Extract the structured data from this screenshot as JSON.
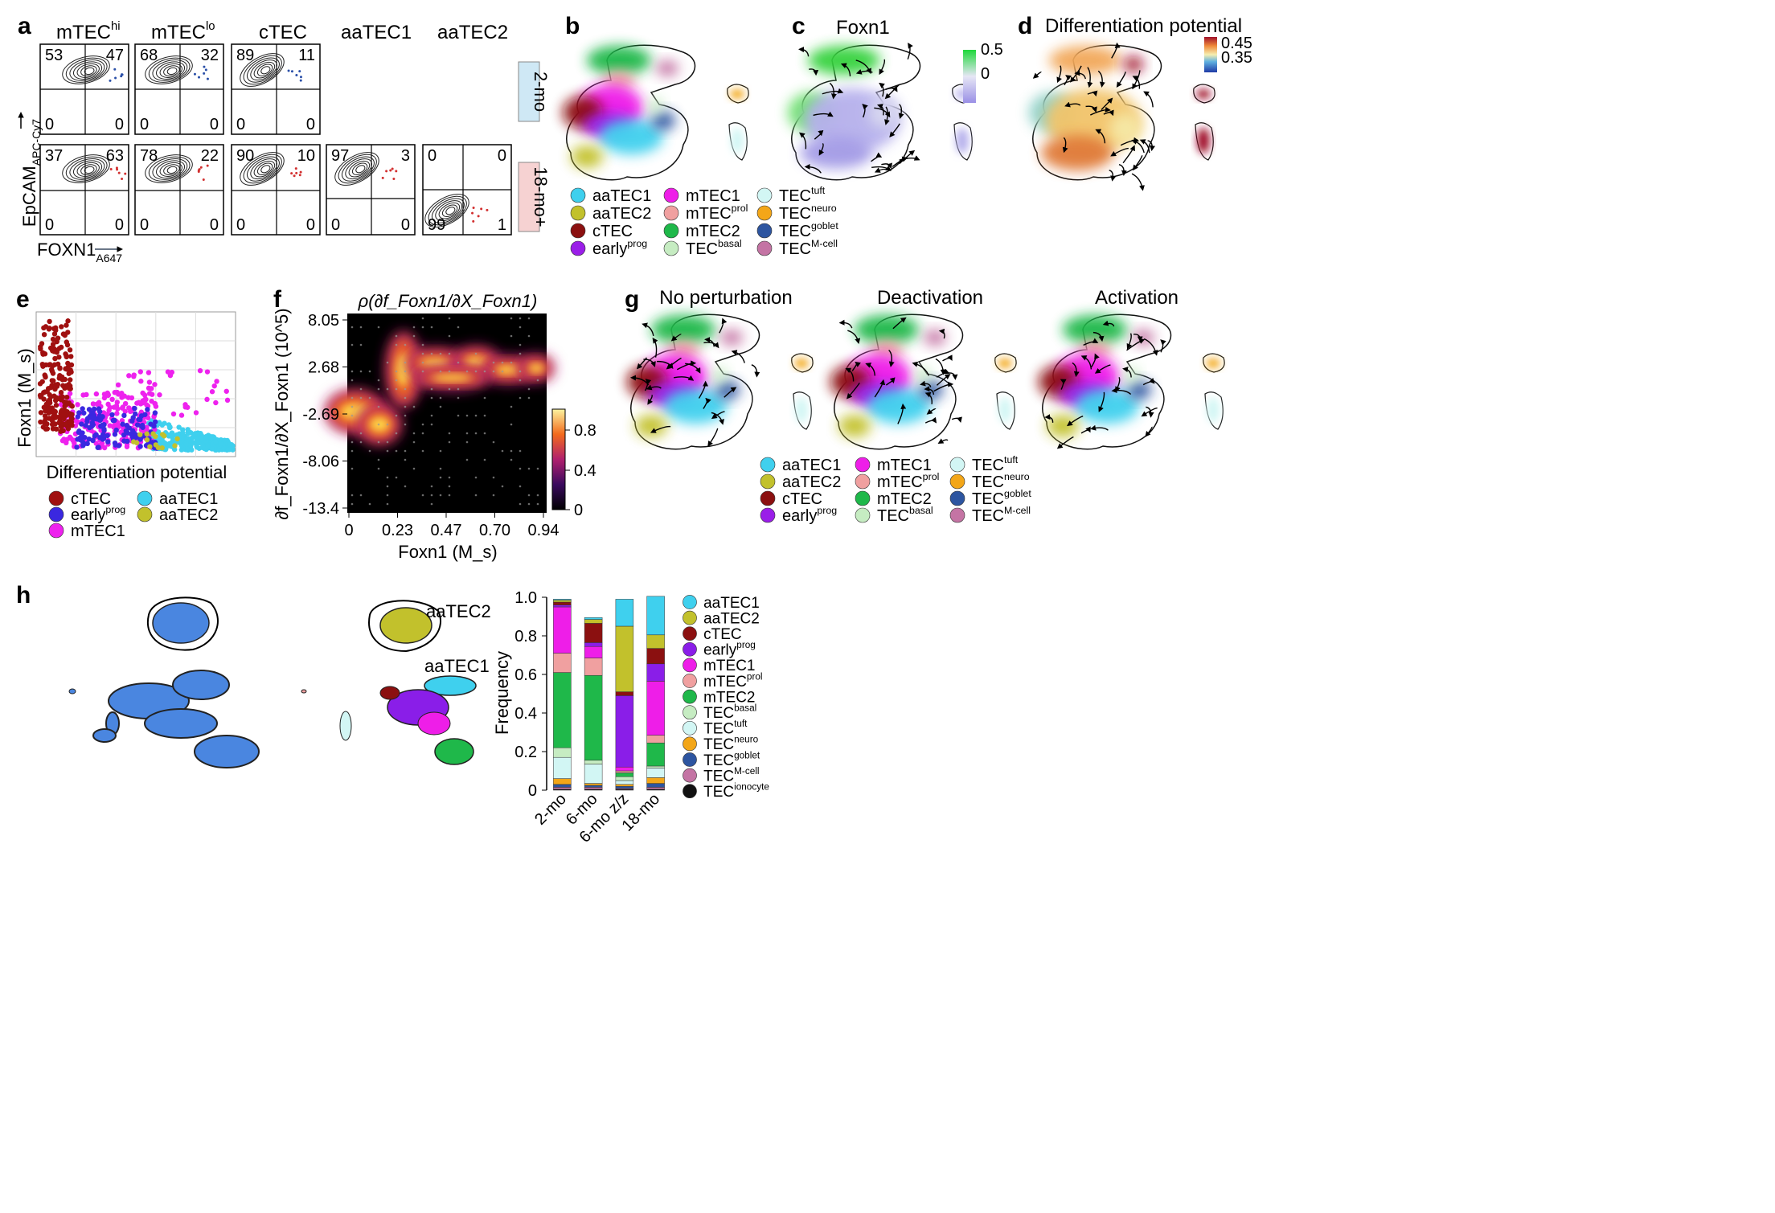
{
  "panels": {
    "a": {
      "label": "a",
      "columns": [
        "mTEC",
        "mTEC",
        "cTEC",
        "aaTEC1",
        "aaTEC2"
      ],
      "column_sups": [
        "hi",
        "lo",
        "",
        "",
        ""
      ],
      "rows": [
        {
          "tag": "2-mo",
          "color": "#cfe8f5",
          "quadrants": [
            [
              "53",
              "47",
              "0",
              "0"
            ],
            [
              "68",
              "32",
              "0",
              "0"
            ],
            [
              "89",
              "11",
              "0",
              "0"
            ]
          ]
        },
        {
          "tag": "18-mo+",
          "color": "#f6d2d2",
          "quadrants": [
            [
              "37",
              "63",
              "0",
              "0"
            ],
            [
              "78",
              "22",
              "0",
              "0"
            ],
            [
              "90",
              "10",
              "0",
              "0"
            ],
            [
              "97",
              "3",
              "0",
              "0"
            ],
            [
              "0",
              "0",
              "99",
              "1"
            ]
          ]
        }
      ],
      "y_axis": "EpCAM",
      "y_axis_sub": "APC-Cy7",
      "x_axis": "FOXN1",
      "x_axis_sub": "A647"
    },
    "b": {
      "label": "b"
    },
    "c": {
      "label": "c",
      "title": "Foxn1",
      "colorbar_ticks": [
        "0.5",
        "0"
      ]
    },
    "d": {
      "label": "d",
      "title": "Differentiation potential",
      "colorbar_ticks": [
        "0.45",
        "0.35"
      ]
    },
    "e": {
      "label": "e",
      "ylabel": "Foxn1 (M_s)",
      "xlabel": "Differentiation potential"
    },
    "f": {
      "label": "f",
      "colorbar_ticks": [
        "0.8",
        "0.4",
        "0"
      ]
    },
    "g": {
      "label": "g",
      "titles": [
        "No perturbation",
        "Deactivation",
        "Activation"
      ]
    },
    "h": {
      "label": "h",
      "cluster_labels": [
        "aaTEC2",
        "aaTEC1"
      ]
    }
  },
  "legends": {
    "b": [
      {
        "name": "aaTEC1",
        "sup": "",
        "color": "#3fd0ee"
      },
      {
        "name": "aaTEC2",
        "sup": "",
        "color": "#c2c12c"
      },
      {
        "name": "cTEC",
        "sup": "",
        "color": "#8b1010"
      },
      {
        "name": "early",
        "sup": "prog",
        "color": "#9a1ee8"
      },
      {
        "name": "mTEC1",
        "sup": "",
        "color": "#ee1ee8"
      },
      {
        "name": "mTEC",
        "sup": "prol",
        "color": "#f0a0a0"
      },
      {
        "name": "mTEC2",
        "sup": "",
        "color": "#1fb84a"
      },
      {
        "name": "TEC",
        "sup": "basal",
        "color": "#c6ecc2"
      },
      {
        "name": "TEC",
        "sup": "tuft",
        "color": "#d2f6f4"
      },
      {
        "name": "TEC",
        "sup": "neuro",
        "color": "#f3a618"
      },
      {
        "name": "TEC",
        "sup": "goblet",
        "color": "#2d55a0"
      },
      {
        "name": "TEC",
        "sup": "M-cell",
        "color": "#c474a4"
      }
    ],
    "e": [
      {
        "name": "cTEC",
        "sup": "",
        "color": "#a01010"
      },
      {
        "name": "early",
        "sup": "prog",
        "color": "#3a28e0"
      },
      {
        "name": "mTEC1",
        "sup": "",
        "color": "#ee22ee"
      },
      {
        "name": "aaTEC1",
        "sup": "",
        "color": "#3fd0ee"
      },
      {
        "name": "aaTEC2",
        "sup": "",
        "color": "#c2c12c"
      }
    ],
    "h": [
      {
        "name": "aaTEC1",
        "sup": "",
        "color": "#3fd0ee"
      },
      {
        "name": "aaTEC2",
        "sup": "",
        "color": "#c2c12c"
      },
      {
        "name": "cTEC",
        "sup": "",
        "color": "#8b1010"
      },
      {
        "name": "early",
        "sup": "prog",
        "color": "#8a1ee8"
      },
      {
        "name": "mTEC1",
        "sup": "",
        "color": "#ee1ee8"
      },
      {
        "name": "mTEC",
        "sup": "prol",
        "color": "#f0a0a0"
      },
      {
        "name": "mTEC2",
        "sup": "",
        "color": "#1fb84a"
      },
      {
        "name": "TEC",
        "sup": "basal",
        "color": "#c6ecc2"
      },
      {
        "name": "TEC",
        "sup": "tuft",
        "color": "#d2f6f4"
      },
      {
        "name": "TEC",
        "sup": "neuro",
        "color": "#f3a618"
      },
      {
        "name": "TEC",
        "sup": "goblet",
        "color": "#2d55a0"
      },
      {
        "name": "TEC",
        "sup": "M-cell",
        "color": "#c474a4"
      },
      {
        "name": "TEC",
        "sup": "ionocyte",
        "color": "#111111"
      }
    ]
  },
  "chart_data": [
    {
      "id": "e",
      "type": "scatter",
      "title": "",
      "xlabel": "Differentiation potential",
      "ylabel": "Foxn1 (M_s)",
      "grid": true,
      "note": "Scatter of cells; Foxn1 expression decreases as differentiation potential increases (axis ticks unlabeled)."
    },
    {
      "id": "f",
      "type": "heatmap",
      "title": "ρ(∂f_Foxn1/∂X_Foxn1)",
      "xlabel": "Foxn1 (M_s)",
      "ylabel": "∂f_Foxn1/∂X_Foxn1 (10^5)",
      "x_ticks": [
        "0",
        "0.23",
        "0.47",
        "0.70",
        "0.94"
      ],
      "y_ticks": [
        "8.05",
        "2.68",
        "-2.69",
        "-8.06",
        "-13.4"
      ],
      "colorbar": {
        "min": 0,
        "max": 1,
        "ticks": [
          0,
          0.4,
          0.8
        ]
      }
    },
    {
      "id": "h",
      "type": "bar",
      "stacked": true,
      "title": "",
      "xlabel": "",
      "ylabel": "Frequency",
      "ylim": [
        0,
        1
      ],
      "y_ticks": [
        "0",
        "0.2",
        "0.4",
        "0.6",
        "0.8",
        "1.0"
      ],
      "categories": [
        "2-mo",
        "6-mo",
        "6-mo z/z",
        "18-mo"
      ],
      "series": [
        {
          "name": "TEC ionocyte",
          "color": "#111111",
          "values": [
            0.005,
            0.005,
            0.005,
            0.005
          ]
        },
        {
          "name": "TEC M-cell",
          "color": "#c474a4",
          "values": [
            0.01,
            0.01,
            0.005,
            0.01
          ]
        },
        {
          "name": "TEC goblet",
          "color": "#2d55a0",
          "values": [
            0.015,
            0.01,
            0.01,
            0.02
          ]
        },
        {
          "name": "TEC neuro",
          "color": "#f3a618",
          "values": [
            0.03,
            0.01,
            0.01,
            0.03
          ]
        },
        {
          "name": "TEC tuft",
          "color": "#d2f6f4",
          "values": [
            0.11,
            0.1,
            0.02,
            0.05
          ]
        },
        {
          "name": "TEC basal",
          "color": "#c6ecc2",
          "values": [
            0.05,
            0.02,
            0.02,
            0.01
          ]
        },
        {
          "name": "mTEC2",
          "color": "#1fb84a",
          "values": [
            0.39,
            0.44,
            0.02,
            0.12
          ]
        },
        {
          "name": "mTEC prol",
          "color": "#f0a0a0",
          "values": [
            0.1,
            0.09,
            0.01,
            0.04
          ]
        },
        {
          "name": "mTEC1",
          "color": "#ee1ee8",
          "values": [
            0.24,
            0.06,
            0.02,
            0.28
          ]
        },
        {
          "name": "early prog",
          "color": "#8a1ee8",
          "values": [
            0.01,
            0.02,
            0.37,
            0.09
          ]
        },
        {
          "name": "cTEC",
          "color": "#8b1010",
          "values": [
            0.015,
            0.1,
            0.02,
            0.08
          ]
        },
        {
          "name": "aaTEC2",
          "color": "#c2c12c",
          "values": [
            0.01,
            0.02,
            0.34,
            0.07
          ]
        },
        {
          "name": "aaTEC1",
          "color": "#3fd0ee",
          "values": [
            0.005,
            0.01,
            0.14,
            0.2
          ]
        }
      ]
    }
  ]
}
